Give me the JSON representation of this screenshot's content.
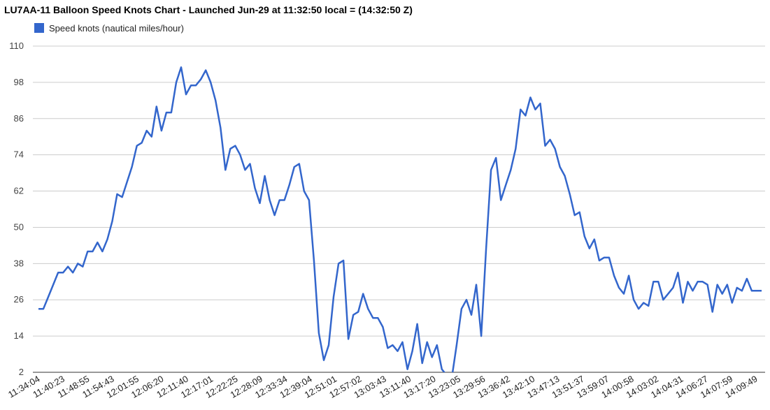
{
  "chart_data": {
    "type": "line",
    "title": "LU7AA-11 Balloon Speed Knots Chart - Launched Jun-29 at 11:32:50 local = (14:32:50 Z)",
    "legend": {
      "position": "top-left",
      "entries": [
        "Speed knots (nautical miles/hour)"
      ]
    },
    "xlabel": "",
    "ylabel": "",
    "ylim": [
      2,
      110
    ],
    "yticks": [
      2,
      14,
      26,
      38,
      50,
      62,
      74,
      86,
      98,
      110
    ],
    "grid": true,
    "x_tick_labels": [
      "11:34:04",
      "11:40:23",
      "11:48:55",
      "11:54:43",
      "12:01:55",
      "12:06:20",
      "12:11:40",
      "12:17:01",
      "12:22:25",
      "12:28:09",
      "12:33:34",
      "12:39:04",
      "12:51:01",
      "12:57:02",
      "13:03:43",
      "13:11:40",
      "13:17:20",
      "13:23:05",
      "13:29:56",
      "13:36:42",
      "13:42:10",
      "13:47:13",
      "13:51:37",
      "13:59:07",
      "14:00:58",
      "14:03:02",
      "14:04:31",
      "14:06:27",
      "14:07:59",
      "14:09:49"
    ],
    "color": "#3366cc",
    "series": [
      {
        "name": "Speed knots (nautical miles/hour)",
        "values": [
          23,
          23,
          27,
          31,
          35,
          35,
          37,
          35,
          38,
          37,
          42,
          42,
          45,
          42,
          46,
          52,
          61,
          60,
          65,
          70,
          77,
          78,
          82,
          80,
          90,
          82,
          88,
          88,
          98,
          103,
          94,
          97,
          97,
          99,
          102,
          98,
          92,
          83,
          69,
          76,
          77,
          74,
          69,
          71,
          63,
          58,
          67,
          59,
          54,
          59,
          59,
          64,
          70,
          71,
          62,
          59,
          39,
          15,
          6,
          11,
          27,
          38,
          39,
          13,
          21,
          22,
          28,
          23,
          20,
          20,
          17,
          10,
          11,
          9,
          12,
          3,
          9,
          18,
          5,
          12,
          7,
          11,
          3,
          1,
          0,
          11,
          23,
          26,
          21,
          31,
          14,
          43,
          69,
          73,
          59,
          64,
          69,
          76,
          89,
          87,
          93,
          89,
          91,
          77,
          79,
          76,
          70,
          67,
          61,
          54,
          55,
          47,
          43,
          46,
          39,
          40,
          40,
          34,
          30,
          28,
          34,
          26,
          23,
          25,
          24,
          32,
          32,
          26,
          28,
          30,
          35,
          25,
          32,
          29,
          32,
          32,
          31,
          22,
          31,
          28,
          31,
          25,
          30,
          29,
          33,
          29,
          29,
          29
        ]
      }
    ]
  }
}
